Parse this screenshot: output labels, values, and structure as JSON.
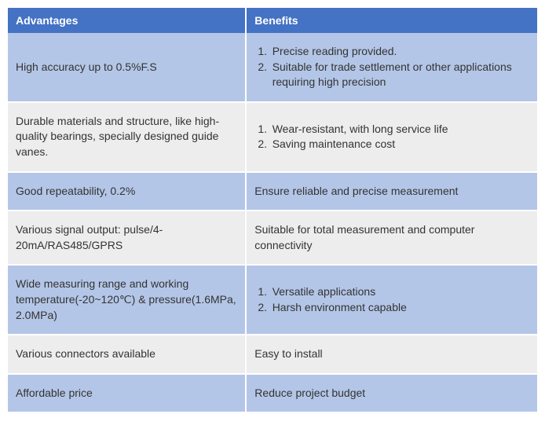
{
  "table": {
    "header_bg": "#4472c4",
    "header_color": "#ffffff",
    "row_colors": [
      "#b4c6e7",
      "#ededed"
    ],
    "col_widths": [
      "45%",
      "55%"
    ],
    "font_size": 14,
    "columns": [
      "Advantages",
      "Benefits"
    ],
    "rows": [
      {
        "advantage": "High accuracy up to 0.5%F.S",
        "benefit_list": [
          "Precise reading provided.",
          "Suitable for trade settlement or other applications requiring high precision"
        ]
      },
      {
        "advantage": "Durable materials and structure, like high-quality bearings, specially designed guide vanes.",
        "benefit_list": [
          "Wear-resistant, with long service life",
          "Saving maintenance cost"
        ]
      },
      {
        "advantage": "Good repeatability, 0.2%",
        "benefit_text": "Ensure reliable and precise measurement"
      },
      {
        "advantage": "Various signal output: pulse/4-20mA/RAS485/GPRS",
        "benefit_text": "Suitable for total measurement and computer connectivity"
      },
      {
        "advantage": "Wide measuring range and working temperature(-20~120℃) & pressure(1.6MPa, 2.0MPa)",
        "benefit_list": [
          "Versatile applications",
          "Harsh environment capable"
        ]
      },
      {
        "advantage": "Various connectors available",
        "benefit_text": "Easy to install"
      },
      {
        "advantage": "Affordable price",
        "benefit_text": "Reduce project budget"
      }
    ]
  }
}
